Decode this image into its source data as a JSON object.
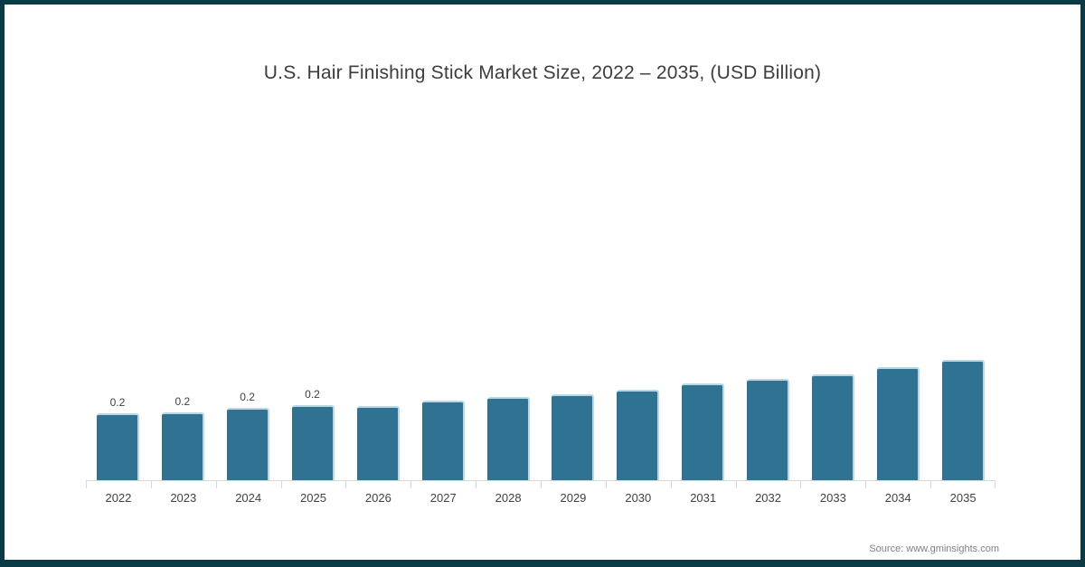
{
  "page": {
    "background": "#ffffff",
    "frame_color": "#0b3a47"
  },
  "chart_data": {
    "type": "bar",
    "title": "U.S. Hair Finishing Stick Market Size, 2022 – 2035, (USD Billion)",
    "xlabel": "",
    "ylabel": "",
    "categories": [
      "2022",
      "2023",
      "2024",
      "2025",
      "2026",
      "2027",
      "2028",
      "2029",
      "2030",
      "2031",
      "2032",
      "2033",
      "2034",
      "2035"
    ],
    "values": [
      0.2,
      0.202,
      0.216,
      0.224,
      0.221,
      0.237,
      0.248,
      0.257,
      0.269,
      0.287,
      0.301,
      0.315,
      0.336,
      0.356
    ],
    "data_labels": [
      "0.2",
      "0.2",
      "0.2",
      "0.2",
      "",
      "",
      "",
      "",
      "",
      "",
      "",
      "",
      "",
      ""
    ],
    "ylim": [
      0,
      0.4
    ],
    "grid": false,
    "legend": false,
    "y_axis_visible": false,
    "colors": {
      "bar": "#2f7291",
      "bar_highlight": "#b9d8e6",
      "axis": "#d9d9d9",
      "title_text": "#3d3d3d",
      "tick_text": "#404040",
      "data_label_text": "#404040"
    }
  },
  "source": {
    "text": "Source: www.gminsights.com",
    "color": "#808080"
  }
}
